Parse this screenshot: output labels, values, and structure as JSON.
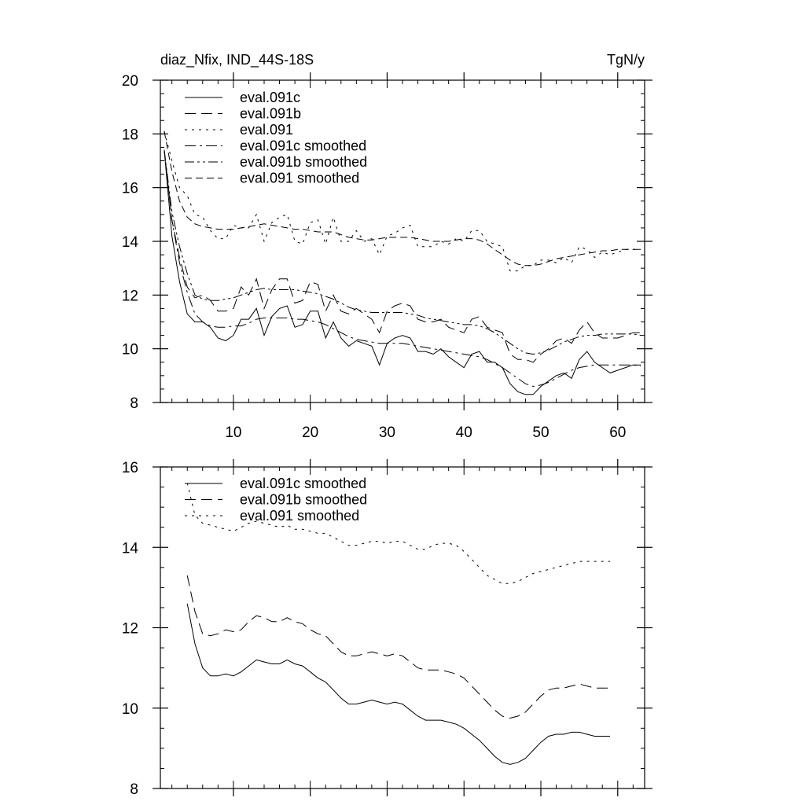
{
  "chart_data": [
    {
      "type": "line",
      "title": "diaz_Nfix, IND_44S-18S",
      "units": "TgN/y",
      "xlabel": "",
      "ylabel": "",
      "xlim": [
        0.5,
        63.5
      ],
      "ylim": [
        8,
        20
      ],
      "xticks": [
        10,
        20,
        30,
        40,
        50,
        60
      ],
      "yticks": [
        8,
        10,
        12,
        14,
        16,
        18,
        20
      ],
      "grid": false,
      "legend_position": "top-left",
      "series": [
        {
          "name": "eval.091c",
          "dash": "solid",
          "x_start": 1,
          "values": [
            17.4,
            14.2,
            12.5,
            11.3,
            11.0,
            11.0,
            10.8,
            10.4,
            10.3,
            10.5,
            11.1,
            11.1,
            11.5,
            10.5,
            11.2,
            11.5,
            11.6,
            10.8,
            10.9,
            11.4,
            11.4,
            10.4,
            11.0,
            10.4,
            10.1,
            10.3,
            10.2,
            10.1,
            9.4,
            10.2,
            10.4,
            10.5,
            10.4,
            9.9,
            9.9,
            9.8,
            10.0,
            9.7,
            9.5,
            9.3,
            9.8,
            9.9,
            9.5,
            9.5,
            9.3,
            8.7,
            8.4,
            8.3,
            8.3,
            8.6,
            8.8,
            9.0,
            9.1,
            8.9,
            9.6,
            9.9,
            9.5,
            9.3,
            9.1,
            9.2,
            9.3,
            9.4,
            9.4
          ]
        },
        {
          "name": "eval.091b",
          "dash": "long",
          "x_start": 1,
          "values": [
            17.4,
            14.8,
            13.4,
            12.3,
            11.9,
            12.0,
            11.8,
            11.4,
            11.4,
            11.5,
            12.3,
            12.0,
            12.6,
            11.5,
            12.2,
            12.6,
            12.6,
            11.7,
            11.8,
            12.5,
            12.4,
            11.4,
            12.0,
            11.4,
            11.3,
            11.5,
            11.3,
            11.1,
            10.6,
            11.4,
            11.6,
            11.7,
            11.6,
            11.1,
            11.0,
            11.0,
            11.1,
            10.8,
            10.7,
            10.6,
            11.1,
            11.2,
            10.8,
            10.7,
            10.6,
            9.8,
            9.6,
            9.6,
            9.5,
            9.8,
            10.0,
            10.3,
            10.4,
            10.2,
            10.7,
            11.0,
            10.6,
            10.4,
            10.4,
            10.4,
            10.5,
            10.6,
            10.6
          ]
        },
        {
          "name": "eval.091",
          "dash": "dotted",
          "x_start": 1,
          "values": [
            18.1,
            17.0,
            16.0,
            15.7,
            15.0,
            14.9,
            14.4,
            14.1,
            14.1,
            14.6,
            14.5,
            14.5,
            15.0,
            14.0,
            14.7,
            14.9,
            15.0,
            14.0,
            13.9,
            14.7,
            14.8,
            13.9,
            14.9,
            14.0,
            14.0,
            14.4,
            14.0,
            14.1,
            13.5,
            14.2,
            14.3,
            14.5,
            14.6,
            13.8,
            13.8,
            13.8,
            14.0,
            13.9,
            14.1,
            14.0,
            14.4,
            14.4,
            14.0,
            13.9,
            13.8,
            12.9,
            12.9,
            13.1,
            13.1,
            13.3,
            13.3,
            13.2,
            13.4,
            13.2,
            13.8,
            13.7,
            13.4,
            13.6,
            13.5,
            13.6,
            13.7,
            13.7,
            13.7
          ]
        },
        {
          "name": "eval.091c smoothed",
          "dash": "dashdot",
          "x_start": 1,
          "values": [
            17.4,
            14.8,
            13.2,
            12.1,
            11.3,
            11.0,
            10.85,
            10.8,
            10.8,
            10.85,
            10.85,
            10.95,
            11.1,
            11.15,
            11.15,
            11.15,
            11.15,
            11.1,
            11.1,
            11.05,
            11.0,
            10.9,
            10.75,
            10.6,
            10.45,
            10.35,
            10.3,
            10.25,
            10.2,
            10.2,
            10.2,
            10.2,
            10.15,
            10.1,
            10.05,
            10.0,
            9.95,
            9.9,
            9.85,
            9.8,
            9.75,
            9.7,
            9.6,
            9.45,
            9.3,
            9.1,
            8.9,
            8.7,
            8.6,
            8.65,
            8.75,
            8.9,
            9.05,
            9.2,
            9.3,
            9.35,
            9.4,
            9.4,
            9.4,
            9.4,
            9.4,
            9.4,
            9.35
          ]
        },
        {
          "name": "eval.091b smoothed",
          "dash": "dashdotdot",
          "x_start": 1,
          "values": [
            17.4,
            15.1,
            13.8,
            12.8,
            12.0,
            11.85,
            11.8,
            11.8,
            11.85,
            11.9,
            12.0,
            12.1,
            12.2,
            12.25,
            12.2,
            12.2,
            12.2,
            12.2,
            12.15,
            12.1,
            12.05,
            11.95,
            11.85,
            11.7,
            11.55,
            11.45,
            11.4,
            11.35,
            11.35,
            11.35,
            11.35,
            11.35,
            11.3,
            11.25,
            11.15,
            11.1,
            11.05,
            11.0,
            10.95,
            10.9,
            10.9,
            10.85,
            10.75,
            10.6,
            10.4,
            10.2,
            10.0,
            9.85,
            9.8,
            9.85,
            9.95,
            10.1,
            10.25,
            10.35,
            10.45,
            10.5,
            10.5,
            10.55,
            10.55,
            10.55,
            10.55,
            10.55,
            10.5
          ]
        },
        {
          "name": "eval.091 smoothed",
          "dash": "medium",
          "x_start": 1,
          "values": [
            18.1,
            16.6,
            15.5,
            14.9,
            14.65,
            14.55,
            14.5,
            14.45,
            14.45,
            14.45,
            14.5,
            14.55,
            14.6,
            14.65,
            14.6,
            14.55,
            14.5,
            14.45,
            14.45,
            14.4,
            14.35,
            14.35,
            14.35,
            14.25,
            14.15,
            14.1,
            14.05,
            14.05,
            14.1,
            14.15,
            14.15,
            14.15,
            14.15,
            14.1,
            14.05,
            14.0,
            14.0,
            14.0,
            14.05,
            14.1,
            14.1,
            14.05,
            13.9,
            13.7,
            13.5,
            13.3,
            13.15,
            13.1,
            13.1,
            13.15,
            13.25,
            13.35,
            13.4,
            13.45,
            13.5,
            13.55,
            13.6,
            13.65,
            13.65,
            13.7,
            13.7,
            13.7,
            13.7
          ]
        }
      ]
    },
    {
      "type": "line",
      "title": "",
      "xlabel": "",
      "ylabel": "",
      "xlim": [
        0.5,
        63.5
      ],
      "ylim": [
        8,
        16
      ],
      "xticks": [
        10,
        20,
        30,
        40,
        50,
        60
      ],
      "yticks": [
        8,
        10,
        12,
        14,
        16
      ],
      "grid": false,
      "legend_position": "top-left",
      "series": [
        {
          "name": "eval.091c smoothed",
          "dash": "solid",
          "x_start": 4,
          "values": [
            12.6,
            11.6,
            11.0,
            10.8,
            10.8,
            10.85,
            10.8,
            10.9,
            11.05,
            11.2,
            11.15,
            11.1,
            11.1,
            11.2,
            11.1,
            11.05,
            10.9,
            10.75,
            10.65,
            10.45,
            10.25,
            10.1,
            10.1,
            10.15,
            10.2,
            10.15,
            10.1,
            10.15,
            10.1,
            9.95,
            9.8,
            9.7,
            9.7,
            9.7,
            9.65,
            9.6,
            9.5,
            9.35,
            9.2,
            9.0,
            8.8,
            8.65,
            8.6,
            8.65,
            8.75,
            8.95,
            9.15,
            9.3,
            9.35,
            9.35,
            9.4,
            9.4,
            9.35,
            9.3,
            9.3,
            9.3
          ]
        },
        {
          "name": "eval.091b smoothed",
          "dash": "long",
          "x_start": 4,
          "values": [
            13.3,
            12.4,
            11.85,
            11.8,
            11.85,
            11.95,
            11.9,
            11.95,
            12.15,
            12.3,
            12.25,
            12.15,
            12.15,
            12.25,
            12.15,
            12.1,
            11.95,
            11.85,
            11.8,
            11.6,
            11.4,
            11.3,
            11.3,
            11.35,
            11.4,
            11.35,
            11.3,
            11.35,
            11.3,
            11.15,
            11.0,
            10.95,
            10.95,
            10.95,
            10.9,
            10.85,
            10.75,
            10.55,
            10.35,
            10.15,
            9.95,
            9.8,
            9.75,
            9.8,
            9.9,
            10.1,
            10.3,
            10.45,
            10.5,
            10.5,
            10.55,
            10.6,
            10.55,
            10.5,
            10.5,
            10.5
          ]
        },
        {
          "name": "eval.091 smoothed",
          "dash": "dotted",
          "x_start": 4,
          "values": [
            15.6,
            14.8,
            14.6,
            14.55,
            14.5,
            14.45,
            14.4,
            14.5,
            14.6,
            14.65,
            14.6,
            14.55,
            14.5,
            14.55,
            14.45,
            14.45,
            14.4,
            14.35,
            14.35,
            14.25,
            14.15,
            14.05,
            14.05,
            14.1,
            14.15,
            14.15,
            14.1,
            14.15,
            14.15,
            14.05,
            13.95,
            13.95,
            14.05,
            14.1,
            14.1,
            14.05,
            13.9,
            13.7,
            13.5,
            13.3,
            13.2,
            13.1,
            13.1,
            13.15,
            13.25,
            13.35,
            13.4,
            13.45,
            13.5,
            13.55,
            13.6,
            13.65,
            13.65,
            13.65,
            13.65,
            13.65
          ]
        }
      ]
    }
  ]
}
